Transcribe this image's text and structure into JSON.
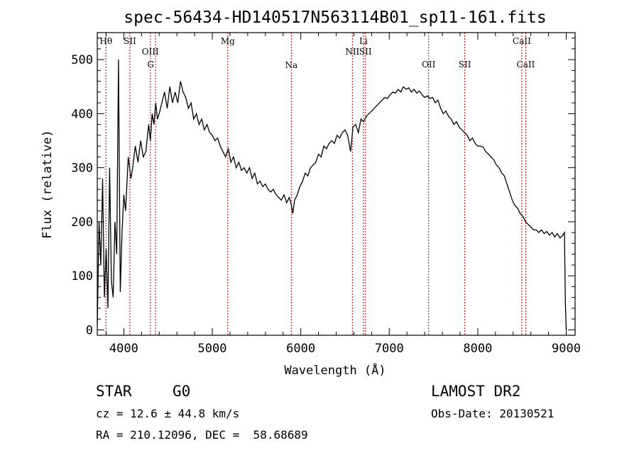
{
  "chart_data": {
    "type": "line",
    "title": "spec-56434-HD140517N563114B01_sp11-161.fits",
    "xlabel": "Wavelength (Å)",
    "ylabel": "Flux (relative)",
    "xlim": [
      3700,
      9100
    ],
    "ylim": [
      -10,
      550
    ],
    "xticks": [
      4000,
      5000,
      6000,
      7000,
      8000,
      9000
    ],
    "yticks": [
      0,
      100,
      200,
      300,
      400,
      500
    ],
    "grid": false,
    "legend": "none",
    "series": [
      {
        "x": [
          3700,
          3720,
          3740,
          3760,
          3780,
          3800,
          3820,
          3840,
          3860,
          3880,
          3900,
          3920,
          3940,
          3960,
          3980,
          4000,
          4020,
          4050,
          4080,
          4100,
          4130,
          4160,
          4190,
          4220,
          4250,
          4280,
          4300,
          4320,
          4340,
          4360,
          4380,
          4400,
          4430,
          4460,
          4490,
          4520,
          4550,
          4580,
          4610,
          4640,
          4670,
          4700,
          4730,
          4760,
          4790,
          4820,
          4850,
          4880,
          4910,
          4940,
          4970,
          5000,
          5030,
          5060,
          5090,
          5120,
          5150,
          5180,
          5210,
          5240,
          5270,
          5300,
          5330,
          5360,
          5390,
          5420,
          5450,
          5480,
          5510,
          5540,
          5570,
          5600,
          5630,
          5660,
          5690,
          5720,
          5750,
          5780,
          5810,
          5840,
          5870,
          5895,
          5910,
          5930,
          5960,
          5990,
          6020,
          6050,
          6080,
          6110,
          6140,
          6170,
          6200,
          6230,
          6260,
          6290,
          6320,
          6350,
          6380,
          6410,
          6440,
          6470,
          6500,
          6530,
          6563,
          6590,
          6620,
          6650,
          6680,
          6710,
          6740,
          6770,
          6800,
          6830,
          6860,
          6890,
          6920,
          6950,
          6980,
          7010,
          7040,
          7070,
          7100,
          7130,
          7160,
          7190,
          7220,
          7250,
          7280,
          7310,
          7340,
          7370,
          7400,
          7430,
          7460,
          7490,
          7520,
          7550,
          7580,
          7610,
          7640,
          7670,
          7700,
          7730,
          7760,
          7790,
          7820,
          7850,
          7880,
          7910,
          7940,
          7970,
          8000,
          8030,
          8060,
          8090,
          8120,
          8150,
          8180,
          8210,
          8240,
          8270,
          8300,
          8330,
          8360,
          8390,
          8420,
          8450,
          8480,
          8510,
          8540,
          8570,
          8600,
          8630,
          8660,
          8690,
          8720,
          8750,
          8780,
          8810,
          8840,
          8870,
          8900,
          8930,
          8960,
          8980,
          8990,
          9000
        ],
        "y": [
          10,
          200,
          120,
          280,
          60,
          150,
          40,
          300,
          90,
          60,
          200,
          140,
          500,
          70,
          180,
          250,
          220,
          320,
          280,
          300,
          340,
          310,
          350,
          320,
          330,
          380,
          350,
          400,
          380,
          420,
          390,
          400,
          420,
          440,
          410,
          450,
          420,
          440,
          420,
          460,
          440,
          430,
          410,
          420,
          390,
          400,
          380,
          390,
          370,
          380,
          365,
          360,
          350,
          355,
          340,
          330,
          320,
          335,
          310,
          320,
          300,
          310,
          295,
          300,
          290,
          300,
          280,
          290,
          270,
          275,
          265,
          270,
          260,
          255,
          260,
          250,
          245,
          240,
          250,
          235,
          245,
          230,
          215,
          240,
          250,
          265,
          275,
          290,
          285,
          300,
          305,
          310,
          325,
          320,
          340,
          335,
          345,
          350,
          345,
          360,
          355,
          365,
          370,
          360,
          330,
          375,
          380,
          365,
          390,
          385,
          395,
          400,
          405,
          410,
          415,
          420,
          425,
          430,
          428,
          435,
          440,
          438,
          445,
          440,
          450,
          445,
          448,
          440,
          445,
          438,
          442,
          435,
          430,
          433,
          428,
          430,
          420,
          425,
          410,
          400,
          405,
          395,
          390,
          380,
          385,
          375,
          370,
          365,
          360,
          350,
          355,
          345,
          340,
          340,
          338,
          330,
          325,
          320,
          315,
          305,
          300,
          290,
          285,
          270,
          255,
          240,
          230,
          225,
          215,
          210,
          200,
          195,
          190,
          185,
          185,
          180,
          185,
          178,
          182,
          175,
          180,
          172,
          178,
          170,
          175,
          180,
          50,
          0
        ]
      }
    ],
    "annotations": [
      {
        "label": "Hθ",
        "x": 3798,
        "row": "top"
      },
      {
        "label": "SII",
        "x": 4069,
        "row": "top"
      },
      {
        "label": "OIII",
        "x": 4300,
        "row": "mid"
      },
      {
        "label": "G",
        "x": 4303,
        "row": "low"
      },
      {
        "label": "Mg",
        "x": 5175,
        "row": "top"
      },
      {
        "label": "Na",
        "x": 5893,
        "row": "na"
      },
      {
        "label": "NII",
        "x": 6583,
        "row": "nii"
      },
      {
        "label": "Li",
        "x": 6708,
        "row": "top"
      },
      {
        "label": "SII",
        "x": 6731,
        "row": "nii"
      },
      {
        "label": "OII",
        "x": 7445,
        "row": "oii"
      },
      {
        "label": "SII",
        "x": 7853,
        "row": "oii"
      },
      {
        "label": "CaII",
        "x": 8498,
        "row": "top"
      },
      {
        "label": "CaII",
        "x": 8542,
        "row": "oii"
      }
    ],
    "marker_lines": [
      3798,
      4069,
      4300,
      4358,
      5175,
      5893,
      6583,
      6708,
      6731,
      7445,
      7853,
      8498,
      8542
    ]
  },
  "info": {
    "object_class": "STAR",
    "subclass": "G0",
    "survey": "LAMOST DR2",
    "cz": "cz = 12.6 ± 44.8 km/s",
    "obs_date": "Obs-Date: 20130521",
    "coords": "RA = 210.12096, DEC =  58.68689"
  },
  "colors": {
    "marker": "#b00000",
    "spectrum": "#000000"
  }
}
